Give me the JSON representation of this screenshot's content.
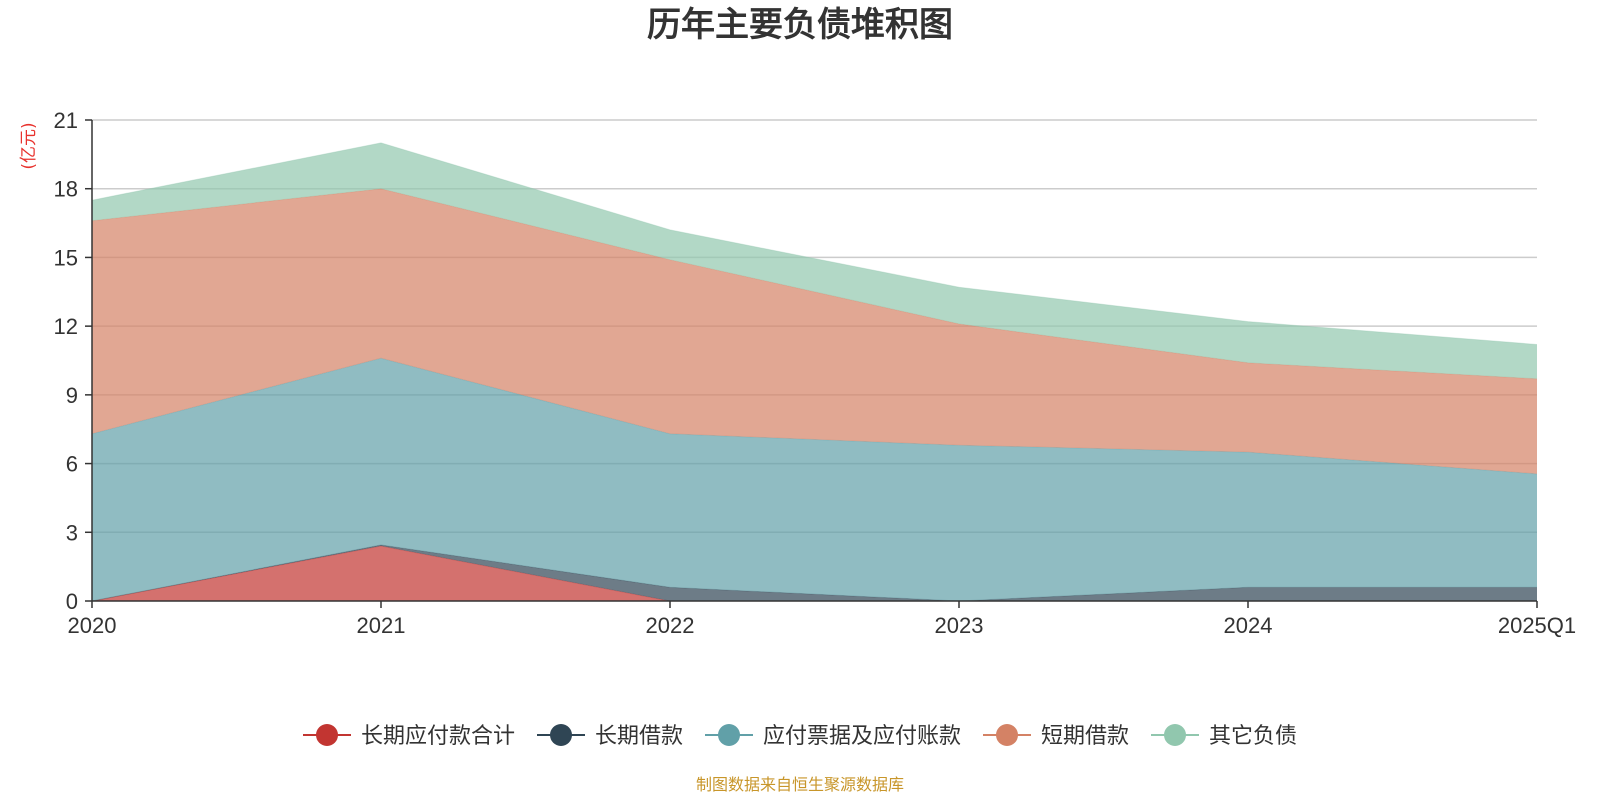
{
  "source_note": "制图数据来自恒生聚源数据库",
  "colors": {
    "长期应付款合计": "#c23531",
    "长期借款": "#2f4554",
    "应付票据及应付账款": "#61a0a8",
    "短期借款": "#d48265",
    "其它负债": "#91c7ae",
    "grid": "#cccccc",
    "axis": "#333333",
    "unit": "#e8322d",
    "source": "#c8962a"
  },
  "chart_data": {
    "type": "area",
    "stacked": true,
    "title": "历年主要负债堆积图",
    "ylabel": "(亿元)",
    "xlabel": "",
    "categories": [
      "2020",
      "2021",
      "2022",
      "2023",
      "2024",
      "2025Q1"
    ],
    "ylim": [
      0,
      21
    ],
    "yticks": [
      0,
      3,
      6,
      9,
      12,
      15,
      18,
      21
    ],
    "grid": true,
    "legend_position": "bottom-center",
    "series": [
      {
        "name": "长期应付款合计",
        "values": [
          0,
          2.4,
          0,
          0,
          0,
          0
        ]
      },
      {
        "name": "长期借款",
        "values": [
          0,
          0.05,
          0.6,
          0,
          0.6,
          0.6
        ]
      },
      {
        "name": "应付票据及应付账款",
        "values": [
          7.3,
          8.15,
          6.7,
          6.8,
          5.9,
          4.95
        ]
      },
      {
        "name": "短期借款",
        "values": [
          9.3,
          7.4,
          7.6,
          5.3,
          3.9,
          4.15
        ]
      },
      {
        "name": "其它负债",
        "values": [
          0.9,
          2.0,
          1.3,
          1.6,
          1.8,
          1.5
        ]
      }
    ]
  }
}
